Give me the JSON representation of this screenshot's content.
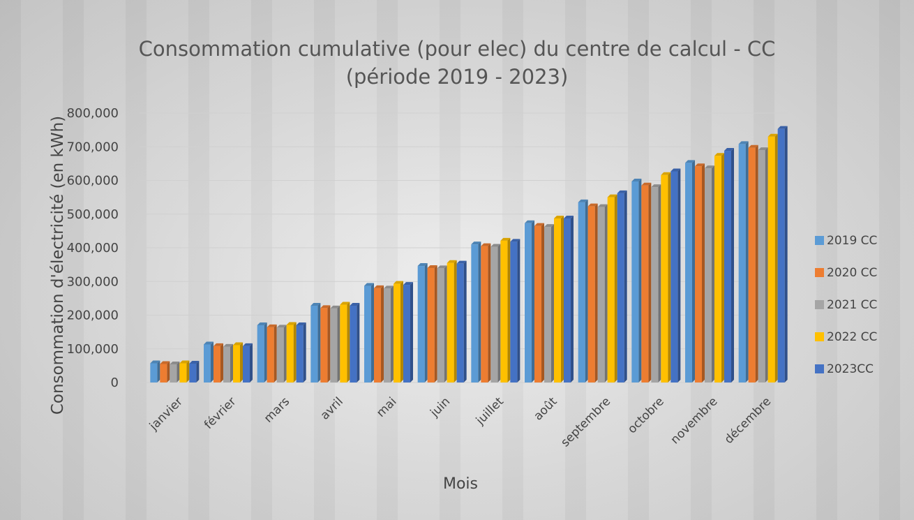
{
  "chart_data": {
    "type": "bar",
    "title": "Consommation cumulative (pour elec) du centre de calcul - CC (période 2019 - 2023)",
    "x_label": "Mois",
    "y_label": "Consommation d'électricité (en kWh)",
    "categories": [
      "janvier",
      "février",
      "mars",
      "avril",
      "mai",
      "juin",
      "juillet",
      "août",
      "septembre",
      "octobre",
      "novembre",
      "décembre"
    ],
    "series": [
      {
        "name": "2019 CC",
        "color": "#5b9bd5",
        "values": [
          57000,
          113000,
          170000,
          228000,
          287000,
          346000,
          410000,
          473000,
          535000,
          597000,
          652000,
          708000
        ]
      },
      {
        "name": "2020 CC",
        "color": "#ed7d31",
        "values": [
          55000,
          108000,
          164000,
          221000,
          280000,
          340000,
          405000,
          465000,
          523000,
          585000,
          642000,
          697000
        ]
      },
      {
        "name": "2021 CC",
        "color": "#a5a5a5",
        "values": [
          54000,
          106000,
          163000,
          220000,
          279000,
          339000,
          403000,
          462000,
          521000,
          580000,
          636000,
          690000
        ]
      },
      {
        "name": "2022 CC",
        "color": "#ffc000",
        "values": [
          57000,
          111000,
          171000,
          231000,
          293000,
          355000,
          421000,
          487000,
          550000,
          616000,
          673000,
          730000
        ]
      },
      {
        "name": "2023CC",
        "color": "#4472c4",
        "values": [
          56000,
          108000,
          170000,
          228000,
          290000,
          353000,
          418000,
          487000,
          562000,
          627000,
          688000,
          753000
        ]
      }
    ],
    "ylim": [
      0,
      800000
    ],
    "yticks": [
      0,
      {
        "value": 100000,
        "label": "100,000"
      },
      {
        "value": 200000,
        "label": "200,000"
      },
      {
        "value": 300000,
        "label": "300,000"
      },
      {
        "value": 400000,
        "label": "400,000"
      },
      {
        "value": 500000,
        "label": "500,000"
      },
      {
        "value": 600000,
        "label": "600,000"
      },
      {
        "value": 700000,
        "label": "700,000"
      },
      {
        "value": 800000,
        "label": "800,000"
      }
    ],
    "grid": true,
    "legend": "right"
  }
}
